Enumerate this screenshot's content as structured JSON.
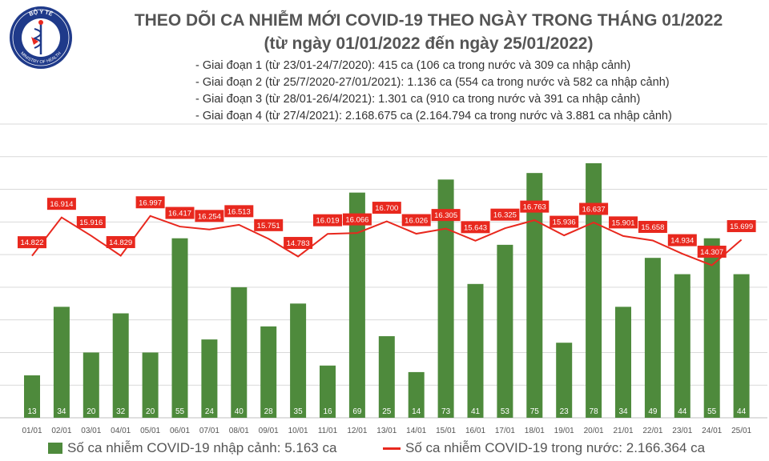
{
  "logo": {
    "top_text": "BỘ Y TẾ",
    "bottom_text": "MINISTRY OF HEALTH",
    "icon": "caduceus-emblem-icon"
  },
  "header": {
    "title": "THEO DÕI CA NHIỄM MỚI COVID-19 THEO NGÀY TRONG THÁNG 01/2022",
    "subtitle": "(từ ngày 01/01/2022 đến ngày 25/01/2022)",
    "phases": [
      "- Giai đoạn 1 (từ 23/01-24/7/2020): 415 ca (106 ca trong nước và 309 ca nhập cảnh)",
      "- Giai đoạn 2 (từ 25/7/2020-27/01/2021): 1.136 ca (554 ca trong nước và 582 ca nhập cảnh)",
      "- Giai đoạn 3 (từ 28/01-26/4/2021): 1.301 ca (910 ca trong nước và 391 ca nhập cảnh)",
      "- Giai đoạn 4 (từ 27/4/2021): 2.168.675 ca (2.164.794 ca trong nước và 3.881 ca nhập cảnh)"
    ]
  },
  "colors": {
    "bar": "#4e8a3c",
    "line": "#e8281e",
    "label_bg": "#e8281e",
    "grid": "#d9d9d9"
  },
  "chart_data": {
    "type": "bar+line",
    "categories": [
      "01/01",
      "02/01",
      "03/01",
      "04/01",
      "05/01",
      "06/01",
      "07/01",
      "08/01",
      "09/01",
      "10/01",
      "11/01",
      "12/01",
      "13/01",
      "14/01",
      "15/01",
      "16/01",
      "17/01",
      "18/01",
      "19/01",
      "20/01",
      "21/01",
      "22/01",
      "23/01",
      "24/01",
      "25/01"
    ],
    "series": [
      {
        "name": "Số ca nhiễm COVID-19 nhập cảnh: 5.163 ca",
        "kind": "bar",
        "values": [
          13,
          34,
          20,
          32,
          20,
          55,
          24,
          40,
          28,
          35,
          16,
          69,
          25,
          14,
          73,
          41,
          53,
          75,
          23,
          78,
          34,
          49,
          44,
          55,
          44
        ],
        "labels": [
          "13",
          "34",
          "20",
          "32",
          "20",
          "55",
          "24",
          "40",
          "28",
          "35",
          "16",
          "69",
          "25",
          "14",
          "73",
          "41",
          "53",
          "75",
          "23",
          "78",
          "34",
          "49",
          "44",
          "55",
          "44"
        ]
      },
      {
        "name": "Số ca nhiễm COVID-19 trong nước: 2.166.364 ca",
        "kind": "line",
        "values": [
          14822,
          16914,
          15916,
          14829,
          16997,
          16417,
          16254,
          16513,
          15751,
          14783,
          16019,
          16066,
          16700,
          16026,
          16305,
          15643,
          16325,
          16763,
          15936,
          16637,
          15901,
          15658,
          14934,
          14307,
          15699
        ],
        "labels": [
          "14.822",
          "16.914",
          "15.916",
          "14.829",
          "16.997",
          "16.417",
          "16.254",
          "16.513",
          "15.751",
          "14.783",
          "16.019",
          "16.066",
          "16.700",
          "16.026",
          "16.305",
          "15.643",
          "16.325",
          "16.763",
          "15.936",
          "16.637",
          "15.901",
          "15.658",
          "14.934",
          "14.307",
          "15.699"
        ]
      }
    ],
    "bar_ylim": [
      0,
      90
    ],
    "line_ylim": [
      6000,
      22000
    ],
    "grid": true,
    "legend": "bottom"
  }
}
